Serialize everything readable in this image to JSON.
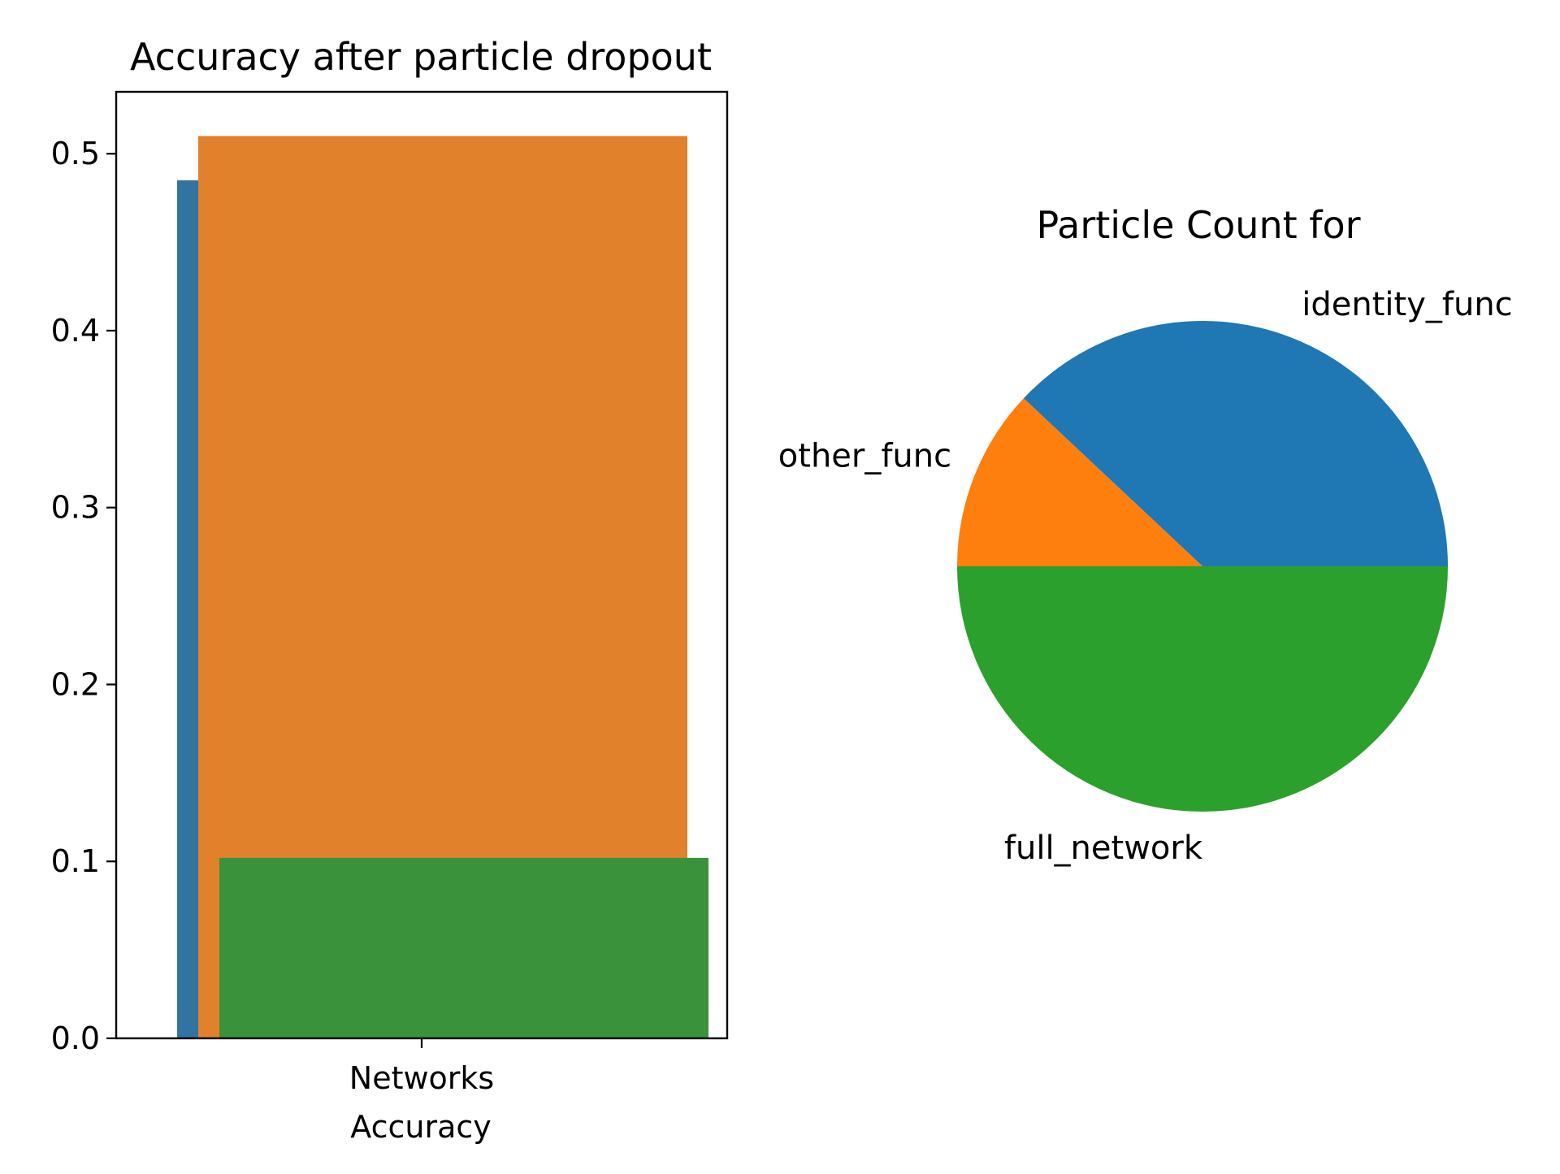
{
  "chart_data": [
    {
      "type": "bar",
      "title": "Accuracy after particle dropout",
      "xlabel": "Accuracy",
      "ylabel": "",
      "categories": [
        "Networks"
      ],
      "ylim": [
        0,
        0.535
      ],
      "yticks": [
        "0.0",
        "0.1",
        "0.2",
        "0.3",
        "0.4",
        "0.5"
      ],
      "grid": false,
      "series": [
        {
          "values": [
            0.485
          ],
          "color": "#3274a1"
        },
        {
          "values": [
            0.51
          ],
          "color": "#e1812c"
        },
        {
          "values": [
            0.102
          ],
          "color": "#3a923a"
        }
      ]
    },
    {
      "type": "pie",
      "title": "Particle Count for",
      "slices": [
        {
          "label": "identity_func",
          "value": 38,
          "color": "#1f77b4"
        },
        {
          "label": "other_func",
          "value": 12,
          "color": "#ff7f0e"
        },
        {
          "label": "full_network",
          "value": 50,
          "color": "#2ca02c"
        }
      ]
    }
  ]
}
